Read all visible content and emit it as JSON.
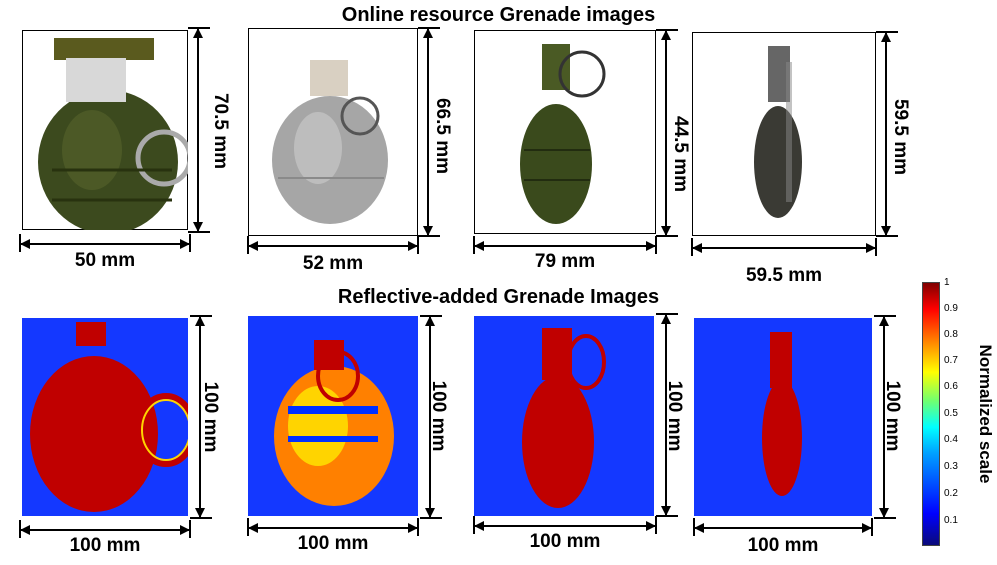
{
  "top_title": "Online resource Grenade images",
  "bottom_title": "Reflective-added Grenade Images",
  "top_panels": [
    {
      "width_label": "50 mm",
      "height_label": "70.5 mm",
      "subject": "grenade-m26-photo"
    },
    {
      "width_label": "52 mm",
      "height_label": "66.5 mm",
      "subject": "grenade-gray-photo"
    },
    {
      "width_label": "79 mm",
      "height_label": "44.5 mm",
      "subject": "grenade-pineapple-photo"
    },
    {
      "width_label": "59.5 mm",
      "height_label": "59.5 mm",
      "subject": "grenade-dark-elongated-photo"
    }
  ],
  "bottom_panels": [
    {
      "width_label": "100 mm",
      "height_label": "100 mm"
    },
    {
      "width_label": "100 mm",
      "height_label": "100 mm"
    },
    {
      "width_label": "100 mm",
      "height_label": "100 mm"
    },
    {
      "width_label": "100 mm",
      "height_label": "100 mm"
    }
  ],
  "colorbar": {
    "label": "Normalized scale",
    "ticks": [
      "1",
      "0.9",
      "0.8",
      "0.7",
      "0.6",
      "0.5",
      "0.4",
      "0.3",
      "0.2",
      "0.1"
    ],
    "colors": {
      "low": "#0a0a7a",
      "mid": "#00ffff",
      "high": "#800000",
      "background": "#1a3cff",
      "object": "#c00000"
    }
  }
}
